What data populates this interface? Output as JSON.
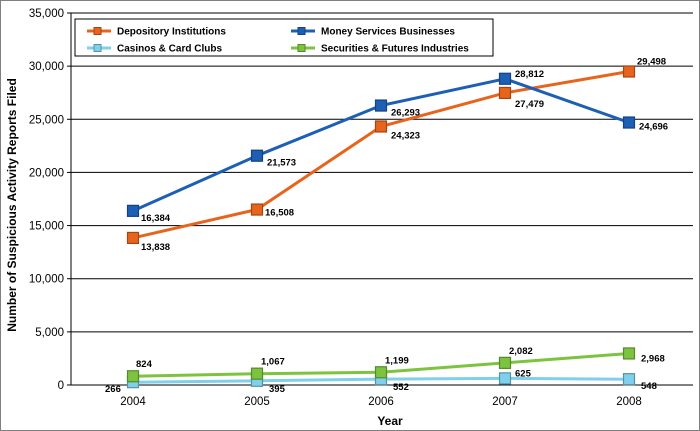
{
  "chart_data": {
    "type": "line",
    "title": "",
    "xlabel": "Year",
    "ylabel": "Number of Suspicious Activity Reports Filed",
    "categories": [
      "2004",
      "2005",
      "2006",
      "2007",
      "2008"
    ],
    "ylim": [
      0,
      35000
    ],
    "y_ticks": [
      0,
      5000,
      10000,
      15000,
      20000,
      25000,
      30000,
      35000
    ],
    "y_tick_labels": [
      "0",
      "5,000",
      "10,000",
      "15,000",
      "20,000",
      "25,000",
      "30,000",
      "35,000"
    ],
    "grid": "horizontal",
    "legend_position": "top",
    "series": [
      {
        "name": "Depository Institutions",
        "color": "#e8641c",
        "values": [
          13838,
          16508,
          24323,
          27479,
          29498
        ],
        "labels": [
          "13,838",
          "16,508",
          "24,323",
          "27,479",
          "29,498"
        ]
      },
      {
        "name": "Money Services Businesses",
        "color": "#1c5fb4",
        "values": [
          16384,
          21573,
          26293,
          28812,
          24696
        ],
        "labels": [
          "16,384",
          "21,573",
          "26,293",
          "28,812",
          "24,696"
        ]
      },
      {
        "name": "Casinos & Card Clubs",
        "color": "#7fd0ec",
        "values": [
          266,
          395,
          552,
          625,
          548
        ],
        "labels": [
          "266",
          "395",
          "552",
          "625",
          "548"
        ]
      },
      {
        "name": "Securities & Futures Industries",
        "color": "#7cc440",
        "values": [
          824,
          1067,
          1199,
          2082,
          2968
        ],
        "labels": [
          "824",
          "1,067",
          "1,199",
          "2,082",
          "2,968"
        ]
      }
    ]
  }
}
